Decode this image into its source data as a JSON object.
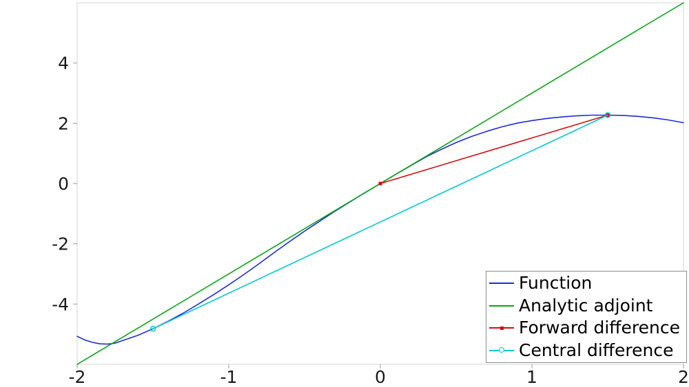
{
  "chart_data": {
    "type": "line",
    "title": "",
    "xlabel": "",
    "ylabel": "",
    "xlim": [
      -2,
      2
    ],
    "ylim": [
      -6,
      6
    ],
    "x_ticks": [
      -2,
      -1,
      0,
      1,
      2
    ],
    "y_ticks": [
      -4,
      -2,
      0,
      2,
      4
    ],
    "grid": false,
    "legend_position": "bottom-right",
    "frame_color": "#d6d6d6",
    "tick_color": "#9a9a9a",
    "text_color": "#1a1a1a",
    "series": [
      {
        "id": "function",
        "name": "Function",
        "color": "#1c2bdc",
        "marker": "none",
        "points": [
          [
            -2.0,
            -5.07
          ],
          [
            -1.95,
            -5.19
          ],
          [
            -1.9,
            -5.27
          ],
          [
            -1.85,
            -5.32
          ],
          [
            -1.8,
            -5.33
          ],
          [
            -1.75,
            -5.3
          ],
          [
            -1.7,
            -5.21
          ],
          [
            -1.6,
            -5.04
          ],
          [
            -1.5,
            -4.82
          ],
          [
            -1.4,
            -4.57
          ],
          [
            -1.3,
            -4.3
          ],
          [
            -1.2,
            -4.0
          ],
          [
            -1.1,
            -3.69
          ],
          [
            -1.0,
            -3.36
          ],
          [
            -0.9,
            -3.02
          ],
          [
            -0.8,
            -2.66
          ],
          [
            -0.7,
            -2.29
          ],
          [
            -0.6,
            -1.93
          ],
          [
            -0.5,
            -1.58
          ],
          [
            -0.4,
            -1.25
          ],
          [
            -0.3,
            -0.92
          ],
          [
            -0.2,
            -0.61
          ],
          [
            -0.1,
            -0.3
          ],
          [
            0,
            0
          ],
          [
            0.1,
            0.3
          ],
          [
            0.2,
            0.59
          ],
          [
            0.3,
            0.88
          ],
          [
            0.4,
            1.13
          ],
          [
            0.5,
            1.36
          ],
          [
            0.6,
            1.56
          ],
          [
            0.7,
            1.73
          ],
          [
            0.8,
            1.88
          ],
          [
            0.9,
            2.0
          ],
          [
            1.0,
            2.09
          ],
          [
            1.1,
            2.16
          ],
          [
            1.2,
            2.21
          ],
          [
            1.3,
            2.25
          ],
          [
            1.4,
            2.27
          ],
          [
            1.5,
            2.27
          ],
          [
            1.6,
            2.26
          ],
          [
            1.7,
            2.23
          ],
          [
            1.8,
            2.18
          ],
          [
            1.9,
            2.11
          ],
          [
            2.0,
            2.02
          ]
        ]
      },
      {
        "id": "analytic-adjoint",
        "name": "Analytic adjoint",
        "color": "#0aa318",
        "marker": "none",
        "points": [
          [
            -2,
            -6
          ],
          [
            2,
            6
          ]
        ]
      },
      {
        "id": "forward-difference",
        "name": "Forward difference",
        "color": "#d40d0d",
        "marker": "square",
        "points": [
          [
            0,
            0
          ],
          [
            1.5,
            2.27
          ]
        ]
      },
      {
        "id": "central-difference",
        "name": "Central difference",
        "color": "#00c9cc",
        "marker": "circle",
        "points": [
          [
            -1.5,
            -4.82
          ],
          [
            1.5,
            2.27
          ]
        ]
      }
    ]
  }
}
